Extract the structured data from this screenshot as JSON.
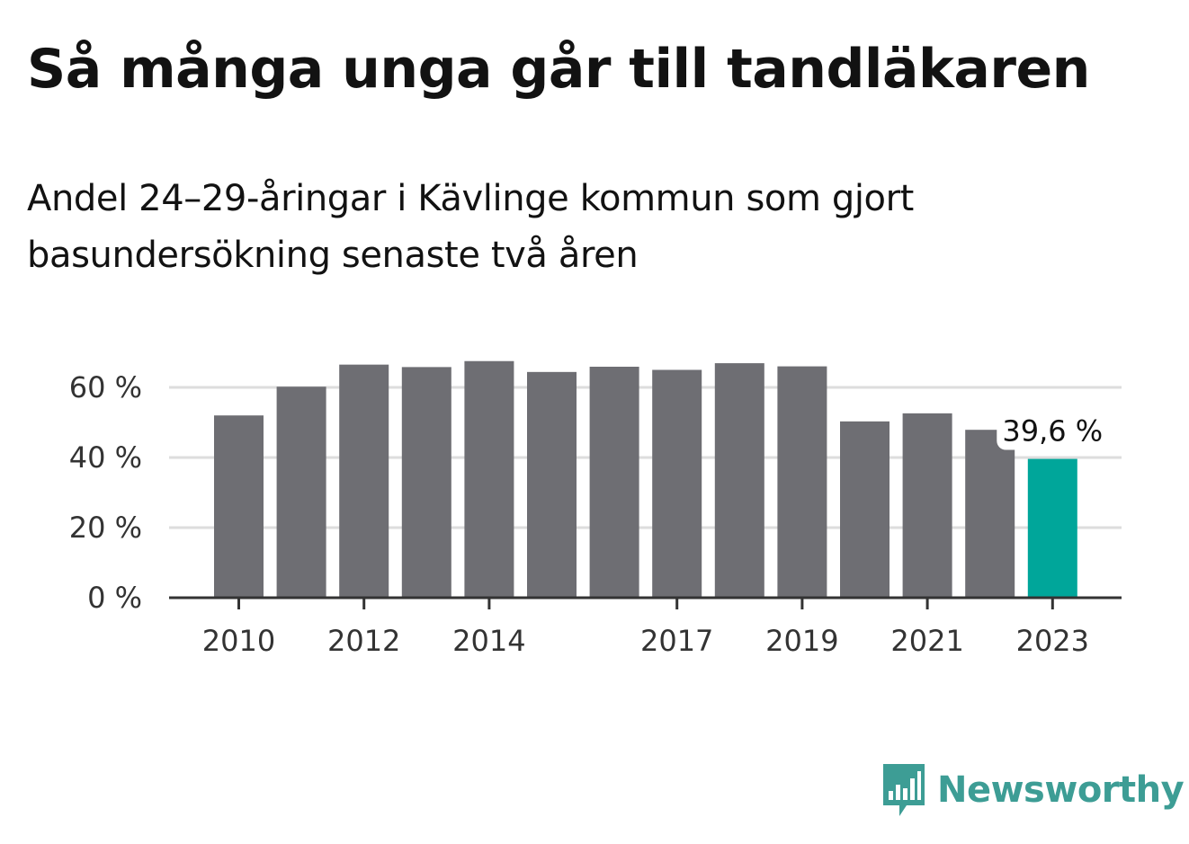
{
  "header": {
    "title": "Så många unga går till tandläkaren",
    "subtitle": "Andel 24–29-åringar i Kävlinge kommun som gjort basundersökning senaste två åren"
  },
  "brand": {
    "name": "Newsworthy",
    "color": "#3d9d95",
    "icon": "chat-bars-icon"
  },
  "colors": {
    "bar": "#6e6e73",
    "highlight": "#00a69a",
    "grid": "#dddddd",
    "axis": "#333333"
  },
  "chart_data": {
    "type": "bar",
    "categories": [
      "2010",
      "2011",
      "2012",
      "2013",
      "2014",
      "2015",
      "2016",
      "2017",
      "2018",
      "2019",
      "2020",
      "2021",
      "2022",
      "2023"
    ],
    "values": [
      52.0,
      60.2,
      66.5,
      65.8,
      67.5,
      64.4,
      65.9,
      65.0,
      66.9,
      66.0,
      50.3,
      52.6,
      47.9,
      39.6
    ],
    "highlight_index": 13,
    "data_labels": [
      {
        "index": 13,
        "text": "39,6 %"
      }
    ],
    "xticks": [
      "2010",
      "2012",
      "2014",
      "2017",
      "2019",
      "2021",
      "2023"
    ],
    "yticks": [
      0,
      20,
      40,
      60
    ],
    "ytick_labels": [
      "0 %",
      "20 %",
      "40 %",
      "60 %"
    ],
    "ylim": [
      0,
      70
    ],
    "grid": true,
    "xlabel": "",
    "ylabel": ""
  }
}
